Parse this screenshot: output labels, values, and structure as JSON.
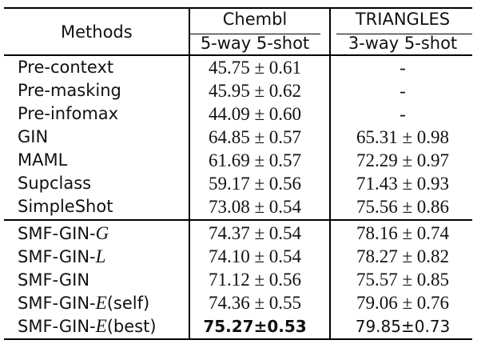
{
  "header": {
    "methods": "Methods",
    "chembl": "Chembl",
    "triangles": "TRIANGLES",
    "chembl_setting": "5-way 5-shot",
    "triangles_setting": "3-way 5-shot"
  },
  "rows": [
    {
      "method": "Pre-context",
      "chembl": "45.75 ± 0.61",
      "triangles": "-"
    },
    {
      "method": "Pre-masking",
      "chembl": "45.95 ± 0.62",
      "triangles": "-"
    },
    {
      "method": "Pre-infomax",
      "chembl": "44.09 ± 0.60",
      "triangles": "-"
    },
    {
      "method": "GIN",
      "chembl": "64.85 ± 0.57",
      "triangles": "65.31 ± 0.98"
    },
    {
      "method": "MAML",
      "chembl": "61.69 ± 0.57",
      "triangles": "72.29 ± 0.97"
    },
    {
      "method": "Supclass",
      "chembl": "59.17 ± 0.56",
      "triangles": "71.43 ± 0.93"
    },
    {
      "method": "SimpleShot",
      "chembl": "73.08 ± 0.54",
      "triangles": "75.56 ± 0.86"
    }
  ],
  "smf_rows": [
    {
      "prefix": "SMF-GIN-",
      "var": "G",
      "suffix": "",
      "chembl": "74.37 ± 0.54",
      "triangles": "78.16 ± 0.74"
    },
    {
      "prefix": "SMF-GIN-",
      "var": "L",
      "suffix": "",
      "chembl": "74.10 ± 0.54",
      "triangles": "78.27 ± 0.82"
    },
    {
      "prefix": "SMF-GIN",
      "var": "",
      "suffix": "",
      "chembl": "71.12 ± 0.56",
      "triangles": "75.57 ± 0.85"
    },
    {
      "prefix": "SMF-GIN-",
      "var": "E",
      "suffix": "(self)",
      "chembl": "74.36 ± 0.55",
      "triangles": "79.06 ± 0.76"
    },
    {
      "prefix": "SMF-GIN-",
      "var": "E",
      "suffix": "(best)",
      "chembl": "75.27±0.53",
      "triangles": "79.85±0.73"
    }
  ]
}
